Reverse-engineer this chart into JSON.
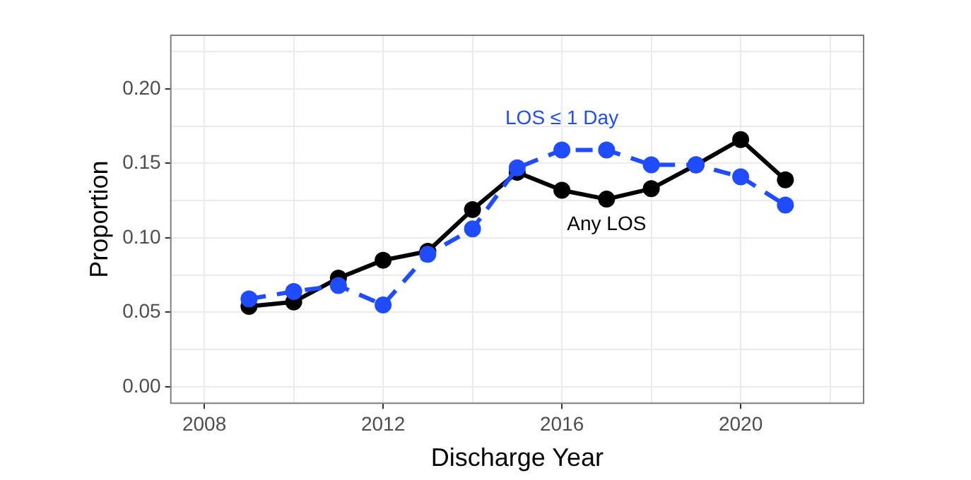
{
  "chart_data": {
    "type": "line",
    "xlabel": "Discharge Year",
    "ylabel": "Proportion",
    "x": [
      2009,
      2010,
      2011,
      2012,
      2013,
      2014,
      2015,
      2016,
      2017,
      2018,
      2019,
      2020,
      2021
    ],
    "series": [
      {
        "name": "Any LOS",
        "color": "#000000",
        "line_style": "solid",
        "values": [
          0.054,
          0.057,
          0.073,
          0.085,
          0.091,
          0.119,
          0.144,
          0.132,
          0.126,
          0.133,
          0.149,
          0.166,
          0.139
        ]
      },
      {
        "name": "LOS ≤ 1 Day",
        "color": "#1f4cff",
        "line_style": "dashed",
        "values": [
          0.059,
          0.064,
          0.068,
          0.055,
          0.089,
          0.106,
          0.147,
          0.159,
          0.159,
          0.149,
          0.149,
          0.141,
          0.122
        ]
      }
    ],
    "xlim": [
      2007.25,
      2022.75
    ],
    "xticks": [
      2008,
      {
        "value": 2010,
        "label": null
      },
      2012,
      {
        "value": 2014,
        "label": null
      },
      2016,
      {
        "value": 2018,
        "label": null
      },
      2020,
      {
        "value": 2022,
        "label": null
      }
    ],
    "ylim": [
      -0.011,
      0.236
    ],
    "yticks": [
      {
        "value": 0,
        "label": "0.00"
      },
      {
        "value": 0.025,
        "label": null
      },
      {
        "value": 0.05,
        "label": "0.05"
      },
      {
        "value": 0.075,
        "label": null
      },
      {
        "value": 0.1,
        "label": "0.10"
      },
      {
        "value": 0.125,
        "label": null
      },
      {
        "value": 0.15,
        "label": "0.15"
      },
      {
        "value": 0.175,
        "label": null
      },
      {
        "value": 0.2,
        "label": "0.20"
      },
      {
        "value": 0.225,
        "label": null
      }
    ],
    "grid": true,
    "marker": "circle",
    "legend": false
  }
}
